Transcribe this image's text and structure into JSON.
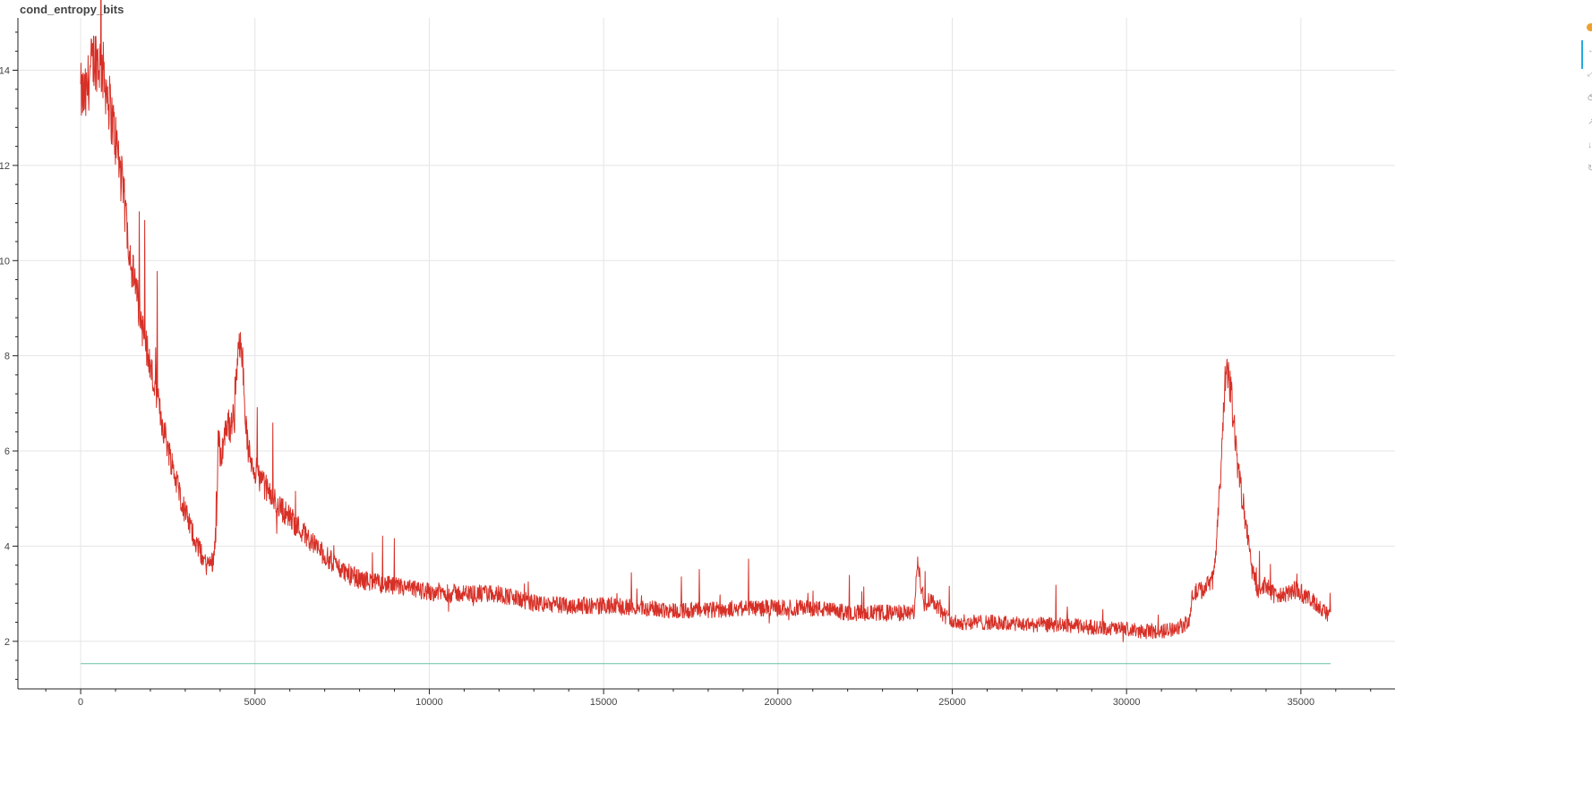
{
  "chart_data": {
    "type": "line",
    "title": "cond_entropy_bits",
    "xlabel": "",
    "ylabel": "",
    "xlim": [
      -1800,
      37700
    ],
    "ylim": [
      1.0,
      15.1
    ],
    "x_ticks": [
      0,
      5000,
      10000,
      15000,
      20000,
      25000,
      30000,
      35000
    ],
    "x_tick_labels": [
      "0",
      "5000",
      "10000",
      "15000",
      "20000",
      "25000",
      "30000",
      "35000"
    ],
    "y_ticks": [
      2,
      4,
      6,
      8,
      10,
      12,
      14
    ],
    "y_tick_labels": [
      "2",
      "4",
      "6",
      "8",
      "10",
      "12",
      "14"
    ],
    "grid": true,
    "legend": "none",
    "series": [
      {
        "color": "#d73027",
        "style": "noisy",
        "x": [
          0,
          150,
          250,
          400,
          600,
          750,
          900,
          1100,
          1300,
          1500,
          1800,
          2100,
          2400,
          2700,
          3000,
          3300,
          3600,
          3800,
          3900,
          3950,
          4000,
          4100,
          4200,
          4300,
          4400,
          4500,
          4600,
          4700,
          4800,
          5000,
          5500,
          6000,
          6500,
          7000,
          7500,
          8000,
          9000,
          10000,
          11000,
          12000,
          13000,
          14000,
          15000,
          16000,
          17000,
          18000,
          19000,
          20000,
          21000,
          22000,
          23000,
          23900,
          24000,
          24200,
          24400,
          24700,
          25000,
          26000,
          27000,
          28000,
          29000,
          30000,
          30500,
          31000,
          31500,
          31800,
          31900,
          32200,
          32500,
          32700,
          32850,
          33000,
          33200,
          33400,
          33600,
          33800,
          34000,
          34300,
          34600,
          34900,
          35200,
          35500,
          35850
        ],
        "y": [
          13.5,
          13.4,
          13.9,
          14.3,
          14.1,
          13.6,
          13.0,
          12.1,
          10.9,
          9.7,
          8.5,
          7.4,
          6.4,
          5.5,
          4.7,
          4.1,
          3.6,
          3.7,
          4.5,
          6.5,
          5.8,
          6.2,
          6.6,
          6.5,
          7.0,
          7.8,
          8.6,
          7.0,
          6.0,
          5.6,
          5.0,
          4.6,
          4.2,
          3.8,
          3.5,
          3.3,
          3.15,
          3.05,
          3.0,
          3.0,
          2.8,
          2.75,
          2.75,
          2.7,
          2.65,
          2.65,
          2.7,
          2.7,
          2.7,
          2.6,
          2.6,
          2.6,
          3.6,
          2.8,
          2.9,
          2.6,
          2.4,
          2.4,
          2.35,
          2.35,
          2.3,
          2.25,
          2.2,
          2.2,
          2.3,
          2.4,
          3.0,
          3.1,
          3.3,
          5.5,
          7.8,
          7.2,
          5.6,
          4.6,
          3.5,
          3.0,
          3.2,
          2.9,
          3.0,
          3.1,
          2.9,
          2.75,
          2.5
        ]
      },
      {
        "color": "#66c2a5",
        "style": "flat",
        "x": [
          0,
          35850
        ],
        "y": [
          1.53,
          1.53
        ]
      }
    ]
  },
  "toolbar": {
    "logo_icon": "bokeh-logo-icon",
    "tools": [
      "↔",
      "⤢",
      "⥀",
      "↗",
      "↓",
      "↻"
    ]
  }
}
